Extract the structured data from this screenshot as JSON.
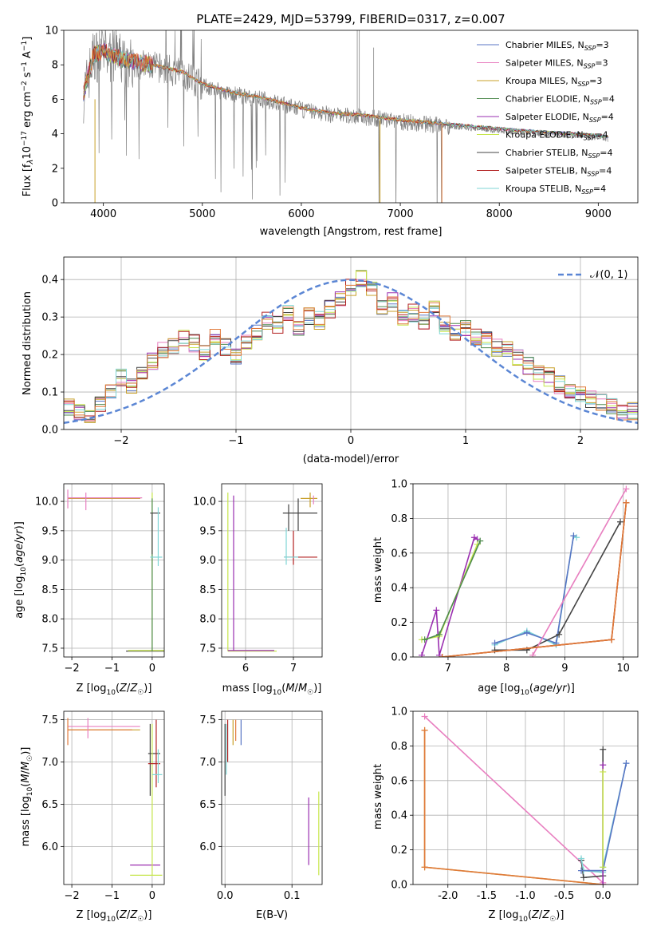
{
  "figure": {
    "title": "PLATE=2429, MJD=53799, FIBERID=0317, z=0.007"
  },
  "chart_data": [
    {
      "type": "line",
      "name": "spectrum",
      "xlabel": "wavelength [Angstrom, rest frame]",
      "ylabel_tex": "Flux [f_λ 10^-17 erg cm^-2 s^-1 A^-1]",
      "xlim": [
        3600,
        9400
      ],
      "ylim": [
        0,
        10
      ],
      "xticks": [
        4000,
        5000,
        6000,
        7000,
        8000,
        9000
      ],
      "yticks": [
        0,
        2,
        4,
        6,
        8,
        10
      ],
      "grid": false,
      "legend_position": "top-right",
      "data_anchor_points": {
        "x": [
          3800,
          3900,
          4000,
          4200,
          4500,
          4800,
          5000,
          5300,
          5600,
          6000,
          6300,
          6600,
          7000,
          7400,
          7800,
          8200,
          8600,
          9000,
          9100
        ],
        "y": [
          6.2,
          8.5,
          8.7,
          8.2,
          7.9,
          7.5,
          6.8,
          6.3,
          6.0,
          5.4,
          5.1,
          5.0,
          4.7,
          4.5,
          4.3,
          4.1,
          3.95,
          3.8,
          3.7
        ]
      },
      "series": [
        {
          "name": "Chabrier MILES, N",
          "sub": "SSP",
          "suffix": "=3",
          "color": "#5875c4"
        },
        {
          "name": "Salpeter MILES, N",
          "sub": "SSP",
          "suffix": "=3",
          "color": "#e87fc0"
        },
        {
          "name": "Kroupa MILES, N",
          "sub": "SSP",
          "suffix": "=3",
          "color": "#c8a02a"
        },
        {
          "name": "Chabrier ELODIE, N",
          "sub": "SSP",
          "suffix": "=4",
          "color": "#4e8a4e"
        },
        {
          "name": "Salpeter ELODIE, N",
          "sub": "SSP",
          "suffix": "=4",
          "color": "#9a2fb0"
        },
        {
          "name": "Kroupa ELODIE, N",
          "sub": "SSP",
          "suffix": "=4",
          "color": "#c6e64a"
        },
        {
          "name": "Chabrier STELIB, N",
          "sub": "SSP",
          "suffix": "=4",
          "color": "#444444"
        },
        {
          "name": "Salpeter STELIB, N",
          "sub": "SSP",
          "suffix": "=4",
          "color": "#b22020"
        },
        {
          "name": "Kroupa STELIB, N",
          "sub": "SSP",
          "suffix": "=4",
          "color": "#7fd6d6"
        }
      ]
    },
    {
      "type": "line",
      "name": "residual-histogram",
      "xlabel": "(data-model)/error",
      "ylabel": "Normed distribution",
      "xlim": [
        -2.5,
        2.5
      ],
      "ylim": [
        0,
        0.46
      ],
      "xticks": [
        -2,
        -1,
        0,
        1,
        2
      ],
      "yticks": [
        0.0,
        0.1,
        0.2,
        0.3,
        0.4
      ],
      "grid": true,
      "legend_position": "top-right",
      "legend": "𝒩(0, 1)",
      "gaussian": {
        "mean": 0,
        "sigma": 1,
        "color": "#5b86d4"
      },
      "hist_base": [
        0.06,
        0.05,
        0.04,
        0.07,
        0.1,
        0.14,
        0.12,
        0.15,
        0.18,
        0.21,
        0.22,
        0.24,
        0.23,
        0.21,
        0.25,
        0.22,
        0.19,
        0.23,
        0.26,
        0.29,
        0.28,
        0.31,
        0.27,
        0.3,
        0.29,
        0.32,
        0.35,
        0.38,
        0.4,
        0.37,
        0.33,
        0.34,
        0.3,
        0.31,
        0.29,
        0.32,
        0.28,
        0.26,
        0.27,
        0.25,
        0.24,
        0.22,
        0.21,
        0.19,
        0.17,
        0.15,
        0.14,
        0.12,
        0.1,
        0.09,
        0.08,
        0.07,
        0.06,
        0.05,
        0.05
      ]
    },
    {
      "type": "scatter",
      "name": "age-vs-Z",
      "xlabel": "Z [log10(Z/Z☉)]",
      "ylabel": "age  [log10(age/yr)]",
      "xlim": [
        -2.2,
        0.3
      ],
      "ylim": [
        7.35,
        10.3
      ],
      "xticks": [
        -2,
        -1,
        0
      ],
      "yticks": [
        7.5,
        8.0,
        8.5,
        9.0,
        9.5,
        10.0
      ],
      "grid": true,
      "segments": [
        {
          "x": [
            -2.1,
            -0.3
          ],
          "y": [
            10.05,
            10.05
          ],
          "c": 3
        },
        {
          "x": [
            -2.1,
            -0.3
          ],
          "y": [
            10.05,
            10.05
          ],
          "c": 2
        },
        {
          "x": [
            -2.1,
            -0.25
          ],
          "y": [
            10.06,
            10.06
          ],
          "c": 1
        },
        {
          "x": [
            -2.1,
            -2.1
          ],
          "y": [
            9.88,
            10.2
          ],
          "c": 1
        },
        {
          "x": [
            -1.65,
            -1.65
          ],
          "y": [
            9.85,
            10.15
          ],
          "c": 1
        },
        {
          "x": [
            -0.65,
            0.3
          ],
          "y": [
            7.45,
            7.45
          ],
          "c": 6
        },
        {
          "x": [
            -0.6,
            0.3
          ],
          "y": [
            7.46,
            7.46
          ],
          "c": 5
        },
        {
          "x": [
            0.0,
            0.0
          ],
          "y": [
            7.45,
            10.15
          ],
          "c": 5
        },
        {
          "x": [
            0.0,
            0.0
          ],
          "y": [
            7.45,
            10.05
          ],
          "c": 3
        },
        {
          "x": [
            0.0,
            0.0
          ],
          "y": [
            9.1,
            9.8
          ],
          "c": 6
        },
        {
          "x": [
            -0.05,
            0.2
          ],
          "y": [
            9.8,
            9.8
          ],
          "c": 6
        },
        {
          "x": [
            -0.05,
            0.25
          ],
          "y": [
            9.05,
            9.05
          ],
          "c": 8
        },
        {
          "x": [
            0.15,
            0.15
          ],
          "y": [
            8.9,
            9.9
          ],
          "c": 8
        }
      ]
    },
    {
      "type": "scatter",
      "name": "age-vs-mass",
      "xlabel": "mass [log10(M/M☉)]",
      "xlim": [
        5.5,
        7.6
      ],
      "ylim": [
        7.35,
        10.3
      ],
      "xticks": [
        6,
        7
      ],
      "yticks": [
        7.5,
        8.0,
        8.5,
        9.0,
        9.5,
        10.0
      ],
      "grid": true,
      "segments": [
        {
          "x": [
            5.63,
            5.63
          ],
          "y": [
            7.45,
            10.15
          ],
          "c": 5
        },
        {
          "x": [
            5.75,
            5.75
          ],
          "y": [
            7.45,
            10.1
          ],
          "c": 4
        },
        {
          "x": [
            5.63,
            6.65
          ],
          "y": [
            7.45,
            7.45
          ],
          "c": 5
        },
        {
          "x": [
            5.63,
            6.6
          ],
          "y": [
            7.46,
            7.46
          ],
          "c": 4
        },
        {
          "x": [
            6.78,
            7.5
          ],
          "y": [
            9.8,
            9.8
          ],
          "c": 6
        },
        {
          "x": [
            6.9,
            6.9
          ],
          "y": [
            9.5,
            9.95
          ],
          "c": 6
        },
        {
          "x": [
            7.1,
            7.1
          ],
          "y": [
            9.5,
            10.05
          ],
          "c": 6
        },
        {
          "x": [
            6.8,
            7.5
          ],
          "y": [
            9.05,
            9.05
          ],
          "c": 7
        },
        {
          "x": [
            7.0,
            7.0
          ],
          "y": [
            8.92,
            9.5
          ],
          "c": 7
        },
        {
          "x": [
            6.8,
            7.1
          ],
          "y": [
            9.05,
            9.05
          ],
          "c": 8
        },
        {
          "x": [
            6.85,
            6.85
          ],
          "y": [
            8.92,
            9.55
          ],
          "c": 8
        },
        {
          "x": [
            7.15,
            7.5
          ],
          "y": [
            10.05,
            10.05
          ],
          "c": 2
        },
        {
          "x": [
            7.35,
            7.35
          ],
          "y": [
            9.9,
            10.15
          ],
          "c": 2
        },
        {
          "x": [
            7.42,
            7.42
          ],
          "y": [
            9.95,
            10.1
          ],
          "c": 1
        }
      ]
    },
    {
      "type": "line",
      "name": "mass-weight-vs-age",
      "xlabel": "age  [log10(age/yr)]",
      "ylabel": "mass weight",
      "xlim": [
        6.4,
        10.25
      ],
      "ylim": [
        0,
        1
      ],
      "xticks": [
        7,
        8,
        9,
        10
      ],
      "yticks": [
        0.0,
        0.2,
        0.4,
        0.6,
        0.8,
        1.0
      ],
      "grid": true,
      "series": [
        {
          "c": 4,
          "x": [
            6.55,
            6.8,
            6.85,
            7.45,
            7.5
          ],
          "y": [
            0.01,
            0.27,
            0.01,
            0.69,
            0.68
          ]
        },
        {
          "c": 5,
          "x": [
            6.55,
            6.85,
            7.5
          ],
          "y": [
            0.1,
            0.12,
            0.65
          ]
        },
        {
          "c": 3,
          "x": [
            6.6,
            6.85,
            7.55
          ],
          "y": [
            0.1,
            0.13,
            0.67
          ]
        },
        {
          "c": 8,
          "x": [
            7.8,
            8.35,
            8.85,
            9.15,
            9.2
          ],
          "y": [
            0.07,
            0.15,
            0.07,
            0.7,
            0.69
          ]
        },
        {
          "c": 0,
          "x": [
            7.8,
            8.35,
            8.85,
            9.15
          ],
          "y": [
            0.08,
            0.14,
            0.08,
            0.7
          ]
        },
        {
          "c": 6,
          "x": [
            7.8,
            8.35,
            8.9,
            9.95
          ],
          "y": [
            0.04,
            0.04,
            0.13,
            0.78
          ]
        },
        {
          "c": 1,
          "x": [
            8.45,
            10.05
          ],
          "y": [
            0.01,
            0.97
          ]
        },
        {
          "c": 2,
          "x": [
            6.9,
            9.8,
            10.05
          ],
          "y": [
            0.0,
            0.1,
            0.89
          ]
        },
        {
          "c": 7,
          "x": [
            6.9,
            9.8,
            10.05
          ],
          "y": [
            0.0,
            0.1,
            0.89
          ]
        },
        {
          "c": 9,
          "x": [
            6.9,
            9.8,
            10.05
          ],
          "y": [
            0.0,
            0.1,
            0.89
          ]
        }
      ]
    },
    {
      "type": "scatter",
      "name": "mass-vs-Z",
      "xlabel": "Z [log10(Z/Z☉)]",
      "ylabel": "mass [log10(M/M☉)]",
      "xlim": [
        -2.2,
        0.3
      ],
      "ylim": [
        5.55,
        7.6
      ],
      "xticks": [
        -2,
        -1,
        0
      ],
      "yticks": [
        6.0,
        6.5,
        7.0,
        7.5
      ],
      "grid": true,
      "segments": [
        {
          "x": [
            -2.1,
            -0.3
          ],
          "y": [
            7.42,
            7.42
          ],
          "c": 1
        },
        {
          "x": [
            -2.1,
            -0.3
          ],
          "y": [
            7.38,
            7.38
          ],
          "c": 2
        },
        {
          "x": [
            -2.1,
            -0.5
          ],
          "y": [
            7.38,
            7.38
          ],
          "c": 9
        },
        {
          "x": [
            -2.1,
            -2.1
          ],
          "y": [
            7.2,
            7.52
          ],
          "c": 9
        },
        {
          "x": [
            -1.6,
            -1.6
          ],
          "y": [
            7.28,
            7.52
          ],
          "c": 1
        },
        {
          "x": [
            -0.55,
            0.2
          ],
          "y": [
            5.78,
            5.78
          ],
          "c": 4
        },
        {
          "x": [
            -0.55,
            0.25
          ],
          "y": [
            5.66,
            5.66
          ],
          "c": 5
        },
        {
          "x": [
            -0.1,
            0.2
          ],
          "y": [
            7.1,
            7.1
          ],
          "c": 6
        },
        {
          "x": [
            -0.05,
            -0.05
          ],
          "y": [
            6.6,
            7.45
          ],
          "c": 6
        },
        {
          "x": [
            0.0,
            0.0
          ],
          "y": [
            5.66,
            7.45
          ],
          "c": 5
        },
        {
          "x": [
            -0.1,
            0.2
          ],
          "y": [
            6.98,
            6.98
          ],
          "c": 7
        },
        {
          "x": [
            0.1,
            0.1
          ],
          "y": [
            6.7,
            7.5
          ],
          "c": 7
        },
        {
          "x": [
            0.0,
            0.25
          ],
          "y": [
            6.85,
            6.85
          ],
          "c": 8
        },
        {
          "x": [
            0.15,
            0.15
          ],
          "y": [
            6.75,
            7.15
          ],
          "c": 8
        }
      ]
    },
    {
      "type": "scatter",
      "name": "mass-vs-EBV",
      "xlabel": "E(B-V)",
      "xlim": [
        -0.005,
        0.145
      ],
      "ylim": [
        5.55,
        7.6
      ],
      "xticks": [
        0.0,
        0.1
      ],
      "yticks": [
        6.0,
        6.5,
        7.0,
        7.5
      ],
      "grid": true,
      "segments": [
        {
          "x": [
            0.0,
            0.0
          ],
          "y": [
            6.6,
            7.45
          ],
          "c": 6
        },
        {
          "x": [
            0.002,
            0.002
          ],
          "y": [
            6.85,
            7.45
          ],
          "c": 8
        },
        {
          "x": [
            0.004,
            0.004
          ],
          "y": [
            7.0,
            7.5
          ],
          "c": 7
        },
        {
          "x": [
            0.012,
            0.012
          ],
          "y": [
            7.2,
            7.5
          ],
          "c": 2
        },
        {
          "x": [
            0.016,
            0.016
          ],
          "y": [
            7.25,
            7.5
          ],
          "c": 9
        },
        {
          "x": [
            0.024,
            0.024
          ],
          "y": [
            7.2,
            7.5
          ],
          "c": 0
        },
        {
          "x": [
            0.125,
            0.125
          ],
          "y": [
            5.78,
            6.58
          ],
          "c": 4
        },
        {
          "x": [
            0.14,
            0.14
          ],
          "y": [
            5.66,
            6.65
          ],
          "c": 5
        }
      ]
    },
    {
      "type": "line",
      "name": "mass-weight-vs-Z",
      "xlabel": "Z [log10(Z/Z☉)]",
      "ylabel": "mass weight",
      "xlim": [
        -2.45,
        0.45
      ],
      "ylim": [
        0,
        1
      ],
      "xticks": [
        -2.0,
        -1.5,
        -1.0,
        -0.5,
        0.0
      ],
      "yticks": [
        0.0,
        0.2,
        0.4,
        0.6,
        0.8,
        1.0
      ],
      "grid": true,
      "series": [
        {
          "c": 1,
          "x": [
            -2.3,
            0.0
          ],
          "y": [
            0.97,
            0.01
          ]
        },
        {
          "c": 2,
          "x": [
            -2.3,
            -2.3,
            0.0
          ],
          "y": [
            0.89,
            0.1,
            0.0
          ]
        },
        {
          "c": 9,
          "x": [
            -2.3,
            -2.3,
            0.0
          ],
          "y": [
            0.89,
            0.1,
            0.0
          ]
        },
        {
          "c": 6,
          "x": [
            -0.28,
            -0.25,
            0.0,
            0.0
          ],
          "y": [
            0.14,
            0.04,
            0.05,
            0.78
          ]
        },
        {
          "c": 8,
          "x": [
            -0.28,
            -0.25,
            0.0,
            0.0,
            0.3
          ],
          "y": [
            0.15,
            0.08,
            0.07,
            0.1,
            0.7
          ]
        },
        {
          "c": 0,
          "x": [
            -0.28,
            0.0,
            0.3
          ],
          "y": [
            0.08,
            0.08,
            0.7
          ]
        },
        {
          "c": 4,
          "x": [
            0.0,
            0.0
          ],
          "y": [
            0.0,
            0.69
          ]
        },
        {
          "c": 5,
          "x": [
            0.0,
            0.0
          ],
          "y": [
            0.1,
            0.65
          ]
        }
      ]
    }
  ],
  "palette": [
    "#5875c4",
    "#e87fc0",
    "#c8a02a",
    "#4e8a4e",
    "#9a2fb0",
    "#c6e64a",
    "#444444",
    "#b22020",
    "#7fd6d6",
    "#e07a3a"
  ]
}
